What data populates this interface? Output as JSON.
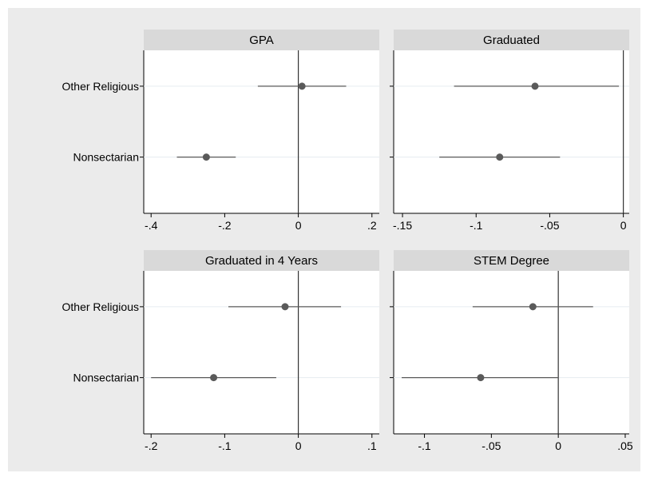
{
  "colors": {
    "background": "#ebebeb",
    "panel": "#ffffff",
    "strip": "#d9d9d9",
    "marker": "#5a5a5a",
    "ci": "#5a5a5a",
    "zero_line": "#333333",
    "grid": "#e6ecf0"
  },
  "chart_data": [
    {
      "type": "scatter",
      "title": "GPA",
      "categories": [
        "Other Religious",
        "Nonsectarian"
      ],
      "estimates": [
        0.01,
        -0.25
      ],
      "ci_low": [
        -0.11,
        -0.33
      ],
      "ci_high": [
        0.13,
        -0.17
      ],
      "xlim": [
        -0.42,
        0.22
      ],
      "xticks": [
        -0.4,
        -0.2,
        0,
        0.2
      ],
      "xtick_labels": [
        "-.4",
        "-.2",
        "0",
        ".2"
      ],
      "reference_line": 0
    },
    {
      "type": "scatter",
      "title": "Graduated",
      "categories": [
        "Other Religious",
        "Nonsectarian"
      ],
      "estimates": [
        -0.06,
        -0.084
      ],
      "ci_low": [
        -0.115,
        -0.125
      ],
      "ci_high": [
        -0.003,
        -0.043
      ],
      "xlim": [
        -0.156,
        0.004
      ],
      "xticks": [
        -0.15,
        -0.1,
        -0.05,
        0
      ],
      "xtick_labels": [
        "-.15",
        "-.1",
        "-.05",
        "0"
      ],
      "reference_line": 0
    },
    {
      "type": "scatter",
      "title": "Graduated in 4 Years",
      "categories": [
        "Other Religious",
        "Nonsectarian"
      ],
      "estimates": [
        -0.018,
        -0.115
      ],
      "ci_low": [
        -0.095,
        -0.2
      ],
      "ci_high": [
        0.058,
        -0.03
      ],
      "xlim": [
        -0.21,
        0.11
      ],
      "xticks": [
        -0.2,
        -0.1,
        0,
        0.1
      ],
      "xtick_labels": [
        "-.2",
        "-.1",
        "0",
        ".1"
      ],
      "reference_line": 0
    },
    {
      "type": "scatter",
      "title": "STEM Degree",
      "categories": [
        "Other Religious",
        "Nonsectarian"
      ],
      "estimates": [
        -0.019,
        -0.058
      ],
      "ci_low": [
        -0.064,
        -0.117
      ],
      "ci_high": [
        0.026,
        0
      ],
      "xlim": [
        -0.123,
        0.053
      ],
      "xticks": [
        -0.1,
        -0.05,
        0,
        0.05
      ],
      "xtick_labels": [
        "-.1",
        "-.05",
        "0",
        ".05"
      ],
      "reference_line": 0
    }
  ]
}
